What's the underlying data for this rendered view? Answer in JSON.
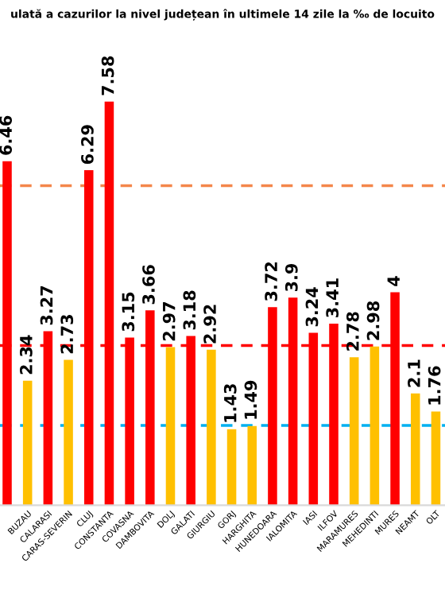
{
  "chart_data": {
    "type": "bar",
    "title": "ulată a cazurilor la nivel județean în ultimele 14 zile la ‰ de locuito",
    "categories": [
      null,
      "BUZAU",
      "CALARASI",
      "CARAS-SEVERIN",
      "CLUJ",
      "CONSTANTA",
      "COVASNA",
      "DAMBOVITA",
      "DOLJ",
      "GALATI",
      "GIURGIU",
      "GORJ",
      "HARGHITA",
      "HUNEDOARA",
      "IALOMITA",
      "IASI",
      "ILFOV",
      "MARAMURES",
      "MEHEDINTI",
      "MURES",
      "NEAMT",
      "OLT"
    ],
    "values": [
      6.46,
      2.34,
      3.27,
      2.73,
      6.29,
      7.58,
      3.15,
      3.66,
      2.97,
      3.18,
      2.92,
      1.43,
      1.49,
      3.72,
      3.9,
      3.24,
      3.41,
      2.78,
      2.98,
      4,
      2.1,
      1.76
    ],
    "colors": [
      "#ff0000",
      "#ffc000",
      "#ff0000",
      "#ffc000",
      "#ff0000",
      "#ff0000",
      "#ff0000",
      "#ff0000",
      "#ffc000",
      "#ff0000",
      "#ffc000",
      "#ffc000",
      "#ffc000",
      "#ff0000",
      "#ff0000",
      "#ff0000",
      "#ff0000",
      "#ffc000",
      "#ffc000",
      "#ff0000",
      "#ffc000",
      "#ffc000"
    ],
    "tick_labels": "x",
    "data_labels": true,
    "grid": false,
    "legend": false,
    "ref_lines": [
      {
        "axis": "y",
        "value": 6,
        "color": "#f4874b",
        "line_style": "dashed"
      },
      {
        "axis": "y",
        "value": 3,
        "color": "#ff0000",
        "line_style": "dashed"
      },
      {
        "axis": "y",
        "value": 1.5,
        "color": "#00b0f0",
        "line_style": "dashed"
      }
    ]
  }
}
